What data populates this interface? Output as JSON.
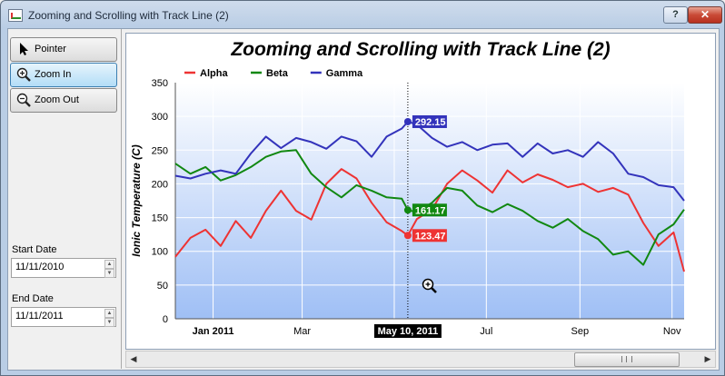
{
  "window": {
    "title": "Zooming and Scrolling with Track Line (2)",
    "help_label": "?",
    "close_label": "✕"
  },
  "toolbar": {
    "pointer": {
      "label": "Pointer",
      "icon": "pointer-icon"
    },
    "zoom_in": {
      "label": "Zoom In",
      "icon": "zoom-in-icon",
      "active": true
    },
    "zoom_out": {
      "label": "Zoom Out",
      "icon": "zoom-out-icon"
    }
  },
  "start_date": {
    "label": "Start Date",
    "value": "11/11/2010"
  },
  "end_date": {
    "label": "End Date",
    "value": "11/11/2011"
  },
  "chart_data": {
    "type": "line",
    "title": "Zooming and Scrolling with Track Line (2)",
    "ylabel": "Ionic Temperature (C)",
    "xlabel": "",
    "ylim": [
      0,
      350
    ],
    "y_ticks": [
      0,
      50,
      100,
      150,
      200,
      250,
      300,
      350
    ],
    "x_range": [
      "2010-12-07",
      "2011-11-09"
    ],
    "x_ticks": [
      {
        "label": "Jan 2011",
        "date": "2011-01-01",
        "bold": true
      },
      {
        "label": "Mar",
        "date": "2011-03-01",
        "bold": false
      },
      {
        "label": "May",
        "date": "2011-05-01",
        "bold": false
      },
      {
        "label": "Jul",
        "date": "2011-07-01",
        "bold": false
      },
      {
        "label": "Sep",
        "date": "2011-09-01",
        "bold": false
      },
      {
        "label": "Nov",
        "date": "2011-11-01",
        "bold": false
      }
    ],
    "grid": true,
    "legend_position": "top-left",
    "colors": {
      "Alpha": "#ee3333",
      "Beta": "#118811",
      "Gamma": "#3333bb",
      "plot_bg_top": "#ffffff",
      "plot_bg_bottom": "#9fbff5"
    },
    "track_line": {
      "date": "2011-05-10",
      "label": "May 10, 2011",
      "values": {
        "Alpha": "123.47",
        "Beta": "161.17",
        "Gamma": "292.15"
      }
    },
    "series": [
      {
        "name": "Alpha",
        "points": [
          [
            "2010-12-07",
            92
          ],
          [
            "2010-12-17",
            120
          ],
          [
            "2010-12-27",
            132
          ],
          [
            "2011-01-06",
            108
          ],
          [
            "2011-01-16",
            145
          ],
          [
            "2011-01-26",
            120
          ],
          [
            "2011-02-05",
            160
          ],
          [
            "2011-02-15",
            190
          ],
          [
            "2011-02-25",
            160
          ],
          [
            "2011-03-07",
            147
          ],
          [
            "2011-03-17",
            200
          ],
          [
            "2011-03-27",
            222
          ],
          [
            "2011-04-06",
            208
          ],
          [
            "2011-04-16",
            172
          ],
          [
            "2011-04-26",
            143
          ],
          [
            "2011-05-06",
            130
          ],
          [
            "2011-05-10",
            123.47
          ],
          [
            "2011-05-16",
            148
          ],
          [
            "2011-05-26",
            162
          ],
          [
            "2011-06-05",
            200
          ],
          [
            "2011-06-15",
            220
          ],
          [
            "2011-06-25",
            205
          ],
          [
            "2011-07-05",
            187
          ],
          [
            "2011-07-15",
            220
          ],
          [
            "2011-07-25",
            202
          ],
          [
            "2011-08-04",
            214
          ],
          [
            "2011-08-14",
            206
          ],
          [
            "2011-08-24",
            195
          ],
          [
            "2011-09-03",
            200
          ],
          [
            "2011-09-13",
            188
          ],
          [
            "2011-09-23",
            194
          ],
          [
            "2011-10-03",
            184
          ],
          [
            "2011-10-13",
            142
          ],
          [
            "2011-10-23",
            108
          ],
          [
            "2011-11-02",
            128
          ],
          [
            "2011-11-09",
            70
          ]
        ]
      },
      {
        "name": "Beta",
        "points": [
          [
            "2010-12-07",
            230
          ],
          [
            "2010-12-17",
            215
          ],
          [
            "2010-12-27",
            225
          ],
          [
            "2011-01-06",
            205
          ],
          [
            "2011-01-16",
            213
          ],
          [
            "2011-01-26",
            225
          ],
          [
            "2011-02-05",
            240
          ],
          [
            "2011-02-15",
            248
          ],
          [
            "2011-02-25",
            250
          ],
          [
            "2011-03-07",
            215
          ],
          [
            "2011-03-17",
            195
          ],
          [
            "2011-03-27",
            180
          ],
          [
            "2011-04-06",
            198
          ],
          [
            "2011-04-16",
            190
          ],
          [
            "2011-04-26",
            180
          ],
          [
            "2011-05-06",
            178
          ],
          [
            "2011-05-10",
            161.17
          ],
          [
            "2011-05-16",
            158
          ],
          [
            "2011-05-26",
            172
          ],
          [
            "2011-06-05",
            194
          ],
          [
            "2011-06-15",
            190
          ],
          [
            "2011-06-25",
            168
          ],
          [
            "2011-07-05",
            158
          ],
          [
            "2011-07-15",
            170
          ],
          [
            "2011-07-25",
            160
          ],
          [
            "2011-08-04",
            145
          ],
          [
            "2011-08-14",
            135
          ],
          [
            "2011-08-24",
            148
          ],
          [
            "2011-09-03",
            130
          ],
          [
            "2011-09-13",
            118
          ],
          [
            "2011-09-23",
            95
          ],
          [
            "2011-10-03",
            100
          ],
          [
            "2011-10-13",
            80
          ],
          [
            "2011-10-23",
            125
          ],
          [
            "2011-11-02",
            140
          ],
          [
            "2011-11-09",
            162
          ]
        ]
      },
      {
        "name": "Gamma",
        "points": [
          [
            "2010-12-07",
            212
          ],
          [
            "2010-12-17",
            208
          ],
          [
            "2010-12-27",
            215
          ],
          [
            "2011-01-06",
            220
          ],
          [
            "2011-01-16",
            215
          ],
          [
            "2011-01-26",
            245
          ],
          [
            "2011-02-05",
            270
          ],
          [
            "2011-02-15",
            253
          ],
          [
            "2011-02-25",
            268
          ],
          [
            "2011-03-07",
            262
          ],
          [
            "2011-03-17",
            252
          ],
          [
            "2011-03-27",
            270
          ],
          [
            "2011-04-06",
            263
          ],
          [
            "2011-04-16",
            240
          ],
          [
            "2011-04-26",
            270
          ],
          [
            "2011-05-06",
            282
          ],
          [
            "2011-05-10",
            292.15
          ],
          [
            "2011-05-16",
            288
          ],
          [
            "2011-05-26",
            268
          ],
          [
            "2011-06-05",
            255
          ],
          [
            "2011-06-15",
            262
          ],
          [
            "2011-06-25",
            250
          ],
          [
            "2011-07-05",
            258
          ],
          [
            "2011-07-15",
            260
          ],
          [
            "2011-07-25",
            240
          ],
          [
            "2011-08-04",
            260
          ],
          [
            "2011-08-14",
            245
          ],
          [
            "2011-08-24",
            250
          ],
          [
            "2011-09-03",
            240
          ],
          [
            "2011-09-13",
            262
          ],
          [
            "2011-09-23",
            245
          ],
          [
            "2011-10-03",
            215
          ],
          [
            "2011-10-13",
            210
          ],
          [
            "2011-10-23",
            198
          ],
          [
            "2011-11-02",
            195
          ],
          [
            "2011-11-09",
            175
          ]
        ]
      }
    ]
  }
}
